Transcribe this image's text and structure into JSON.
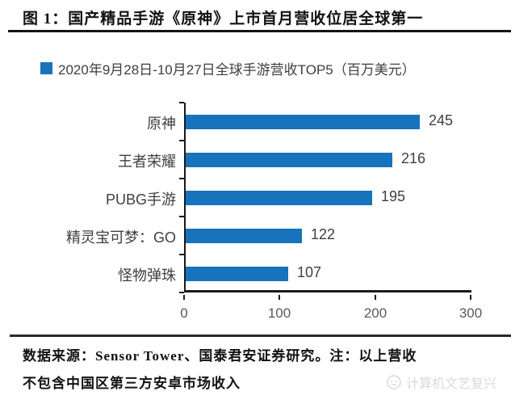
{
  "figure": {
    "title": "图 1：国产精品手游《原神》上市首月营收位居全球第一"
  },
  "legend": {
    "swatch_color": "#1673BC",
    "label": "2020年9月28日-10月27日全球手游营收TOP5（百万美元）"
  },
  "chart_data": {
    "type": "bar",
    "orientation": "horizontal",
    "title": "2020年9月28日-10月27日全球手游营收TOP5（百万美元）",
    "categories": [
      "原神",
      "王者荣耀",
      "PUBG手游",
      "精灵宝可梦：GO",
      "怪物弹珠"
    ],
    "values": [
      245,
      216,
      195,
      122,
      107
    ],
    "xlim": [
      0,
      300
    ],
    "x_ticks": [
      0,
      100,
      200,
      300
    ],
    "xlabel": "",
    "ylabel": "",
    "grid": false,
    "legend_position": "top-left",
    "value_labels_shown": true,
    "bar_color": "#1673BC"
  },
  "footer": {
    "note_line1": "数据来源：Sensor Tower、国泰君安证券研究。注：以上营收",
    "note_line2": "不包含中国区第三方安卓市场收入",
    "watermark_label": "计算机文艺复兴"
  },
  "colors": {
    "bar": "#1673BC",
    "axis": "#1a1a1a",
    "tick_label": "#595959",
    "category_label": "#3f3f3f",
    "value_label": "#404040",
    "title_text": "#121212",
    "watermark": "#d9d9d9"
  }
}
